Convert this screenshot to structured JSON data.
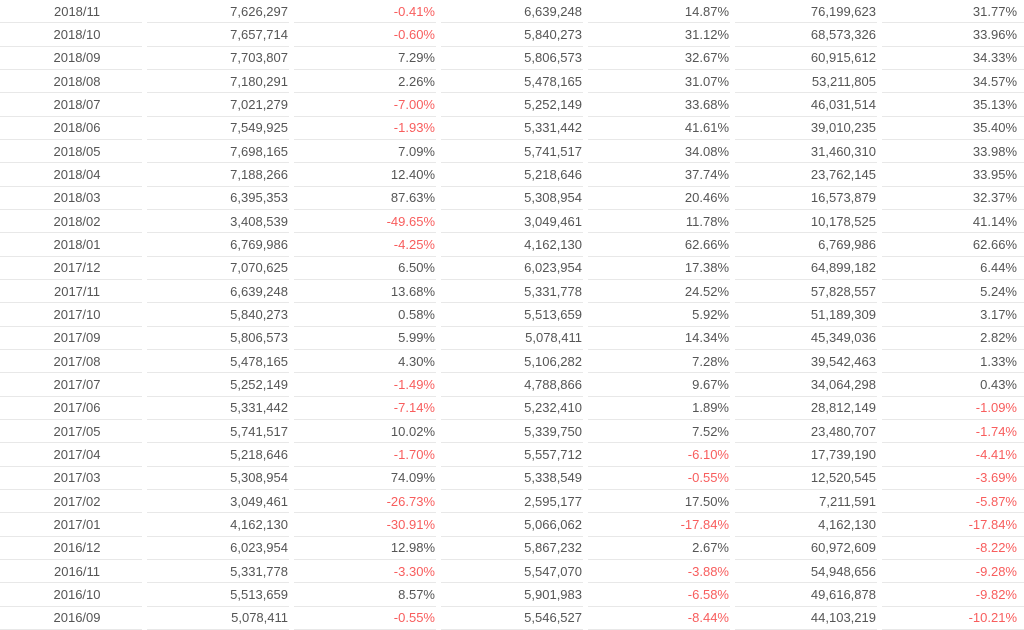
{
  "colors": {
    "text": "#555555",
    "negative": "#f85d5d",
    "separator": "#e8e8e8",
    "background": "#ffffff"
  },
  "chart_data": {
    "type": "table",
    "columns": [
      "month",
      "monthly_value",
      "mom_change",
      "prev_year_month_value",
      "yoy_change",
      "cumulative_value",
      "cumulative_yoy_change"
    ],
    "layout": {
      "header_visible": false,
      "grid": "horizontal-row-separators-with-column-gaps",
      "month_align": "center",
      "value_align": "right",
      "negative_values_red": true
    },
    "rows": [
      [
        "2018/11",
        "7,626,297",
        "-0.41%",
        "6,639,248",
        "14.87%",
        "76,199,623",
        "31.77%"
      ],
      [
        "2018/10",
        "7,657,714",
        "-0.60%",
        "5,840,273",
        "31.12%",
        "68,573,326",
        "33.96%"
      ],
      [
        "2018/09",
        "7,703,807",
        "7.29%",
        "5,806,573",
        "32.67%",
        "60,915,612",
        "34.33%"
      ],
      [
        "2018/08",
        "7,180,291",
        "2.26%",
        "5,478,165",
        "31.07%",
        "53,211,805",
        "34.57%"
      ],
      [
        "2018/07",
        "7,021,279",
        "-7.00%",
        "5,252,149",
        "33.68%",
        "46,031,514",
        "35.13%"
      ],
      [
        "2018/06",
        "7,549,925",
        "-1.93%",
        "5,331,442",
        "41.61%",
        "39,010,235",
        "35.40%"
      ],
      [
        "2018/05",
        "7,698,165",
        "7.09%",
        "5,741,517",
        "34.08%",
        "31,460,310",
        "33.98%"
      ],
      [
        "2018/04",
        "7,188,266",
        "12.40%",
        "5,218,646",
        "37.74%",
        "23,762,145",
        "33.95%"
      ],
      [
        "2018/03",
        "6,395,353",
        "87.63%",
        "5,308,954",
        "20.46%",
        "16,573,879",
        "32.37%"
      ],
      [
        "2018/02",
        "3,408,539",
        "-49.65%",
        "3,049,461",
        "11.78%",
        "10,178,525",
        "41.14%"
      ],
      [
        "2018/01",
        "6,769,986",
        "-4.25%",
        "4,162,130",
        "62.66%",
        "6,769,986",
        "62.66%"
      ],
      [
        "2017/12",
        "7,070,625",
        "6.50%",
        "6,023,954",
        "17.38%",
        "64,899,182",
        "6.44%"
      ],
      [
        "2017/11",
        "6,639,248",
        "13.68%",
        "5,331,778",
        "24.52%",
        "57,828,557",
        "5.24%"
      ],
      [
        "2017/10",
        "5,840,273",
        "0.58%",
        "5,513,659",
        "5.92%",
        "51,189,309",
        "3.17%"
      ],
      [
        "2017/09",
        "5,806,573",
        "5.99%",
        "5,078,411",
        "14.34%",
        "45,349,036",
        "2.82%"
      ],
      [
        "2017/08",
        "5,478,165",
        "4.30%",
        "5,106,282",
        "7.28%",
        "39,542,463",
        "1.33%"
      ],
      [
        "2017/07",
        "5,252,149",
        "-1.49%",
        "4,788,866",
        "9.67%",
        "34,064,298",
        "0.43%"
      ],
      [
        "2017/06",
        "5,331,442",
        "-7.14%",
        "5,232,410",
        "1.89%",
        "28,812,149",
        "-1.09%"
      ],
      [
        "2017/05",
        "5,741,517",
        "10.02%",
        "5,339,750",
        "7.52%",
        "23,480,707",
        "-1.74%"
      ],
      [
        "2017/04",
        "5,218,646",
        "-1.70%",
        "5,557,712",
        "-6.10%",
        "17,739,190",
        "-4.41%"
      ],
      [
        "2017/03",
        "5,308,954",
        "74.09%",
        "5,338,549",
        "-0.55%",
        "12,520,545",
        "-3.69%"
      ],
      [
        "2017/02",
        "3,049,461",
        "-26.73%",
        "2,595,177",
        "17.50%",
        "7,211,591",
        "-5.87%"
      ],
      [
        "2017/01",
        "4,162,130",
        "-30.91%",
        "5,066,062",
        "-17.84%",
        "4,162,130",
        "-17.84%"
      ],
      [
        "2016/12",
        "6,023,954",
        "12.98%",
        "5,867,232",
        "2.67%",
        "60,972,609",
        "-8.22%"
      ],
      [
        "2016/11",
        "5,331,778",
        "-3.30%",
        "5,547,070",
        "-3.88%",
        "54,948,656",
        "-9.28%"
      ],
      [
        "2016/10",
        "5,513,659",
        "8.57%",
        "5,901,983",
        "-6.58%",
        "49,616,878",
        "-9.82%"
      ],
      [
        "2016/09",
        "5,078,411",
        "-0.55%",
        "5,546,527",
        "-8.44%",
        "44,103,219",
        "-10.21%"
      ]
    ]
  }
}
